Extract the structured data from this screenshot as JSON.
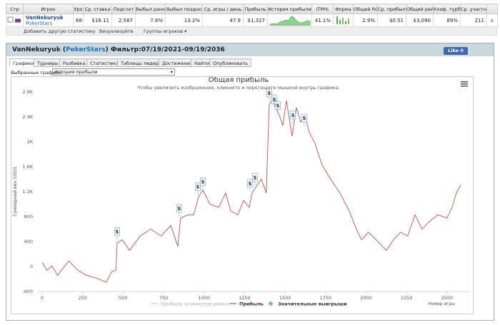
{
  "table": {
    "headers": [
      "Стр",
      "Игрок",
      "Уро",
      "Ср. ставка",
      "Подсчет",
      "Выбыл рано",
      "Выбыл поздно",
      "Ср. игры / день",
      "Прибыль",
      "История прибыли",
      "ITM%",
      "Форма",
      "Общий ROI",
      "Ср. прибыль",
      "Общий рей",
      "Коэф. турб",
      "Ср. участн"
    ],
    "row": {
      "player": "VanNekuryuk",
      "site": "PokerStars",
      "level": "68",
      "avg_stake": "$16.11",
      "count": "2,587",
      "early": "7.8%",
      "late": "13.2%",
      "per_day": "47.9",
      "profit": "$1,327",
      "itm": "41.1%",
      "roi": "2.9%",
      "avg_profit": "$0.51",
      "rake": "$3,090",
      "turbo": "89%",
      "avg_players": "211",
      "remove": "x"
    }
  },
  "toolbar": {
    "add_stat": "Добавить другую статистику",
    "visualize": "Визуализуйте",
    "groups": "Группы игроков ▾"
  },
  "panel": {
    "title_parts": [
      "VanNekuryuk (",
      "PokerStars",
      ") Фильтр:07/19/2021-09/19/2036"
    ],
    "like": "Like 0",
    "tabs": [
      "Графики",
      "Турниры",
      "Разбивка",
      "Статистика",
      "Таблицы лидеров",
      "Достижения",
      "Найти",
      "Опубликовать"
    ],
    "selected_label": "Выбранные графики:",
    "selected_value": "История прибыли"
  },
  "chart_data": {
    "type": "line",
    "title": "Общая прибыль",
    "subtitle": "Чтобы увеличить изображение, кликните и перетащите мышкой внутрь графика.",
    "y_label": "Суммарный вин (USD)",
    "x_label": "Номер игры",
    "grid": false,
    "xlim": [
      -25,
      2640
    ],
    "xticks": [
      0,
      250,
      500,
      750,
      1000,
      1250,
      1500,
      1750,
      2000,
      2250,
      2500
    ],
    "ylim": [
      -400,
      2800
    ],
    "yticks": [
      -400,
      0,
      400,
      800,
      {
        "value": 1200,
        "label": "1.2K"
      },
      {
        "value": 1600,
        "label": "1.6K"
      },
      {
        "value": 2000,
        "label": "2K"
      },
      {
        "value": 2400,
        "label": "2.4K"
      },
      {
        "value": 2800,
        "label": "2.8K"
      }
    ],
    "series": [
      {
        "name": "Прибыль за минусом рейка",
        "color": "#cccccc"
      },
      {
        "name": "Прибыль",
        "color": "#c0504d",
        "x": [
          0,
          30,
          60,
          95,
          165,
          220,
          275,
          340,
          395,
          430,
          455,
          463,
          495,
          540,
          605,
          670,
          735,
          795,
          838,
          855,
          900,
          935,
          966,
          992,
          1036,
          1090,
          1133,
          1164,
          1208,
          1243,
          1279,
          1296,
          1323,
          1354,
          1384,
          1402,
          1420,
          1442,
          1464,
          1486,
          1508,
          1543,
          1570,
          1596,
          1623,
          1649,
          1684,
          1728,
          1781,
          1839,
          1896,
          1940,
          1971,
          2015,
          2081,
          2125,
          2169,
          2213,
          2257,
          2302,
          2346,
          2390,
          2443,
          2500,
          2531,
          2557,
          2584
        ],
        "values": [
          70,
          -60,
          10,
          -140,
          90,
          -60,
          -140,
          -190,
          -250,
          -80,
          -60,
          380,
          430,
          260,
          490,
          600,
          490,
          660,
          320,
          780,
          830,
          830,
          1120,
          1230,
          1000,
          950,
          1180,
          890,
          830,
          1060,
          950,
          1180,
          1290,
          1400,
          1180,
          2600,
          2660,
          2550,
          2430,
          2260,
          2660,
          2090,
          2550,
          2320,
          2430,
          2150,
          1980,
          1630,
          1400,
          1180,
          890,
          600,
          430,
          550,
          380,
          260,
          430,
          550,
          490,
          830,
          600,
          720,
          830,
          780,
          950,
          1180,
          1310
        ]
      },
      {
        "name": "Значительные выигрыши",
        "color": "#7cb5ec",
        "type": "scatter",
        "marker_label": "$",
        "x": [
          463,
          846,
          961,
          992,
          1283,
          1314,
          1402,
          1433,
          1455,
          1548,
          1618
        ],
        "values": [
          430,
          800,
          1150,
          1230,
          1200,
          1300,
          2650,
          2550,
          2450,
          2300,
          2250
        ]
      }
    ]
  }
}
